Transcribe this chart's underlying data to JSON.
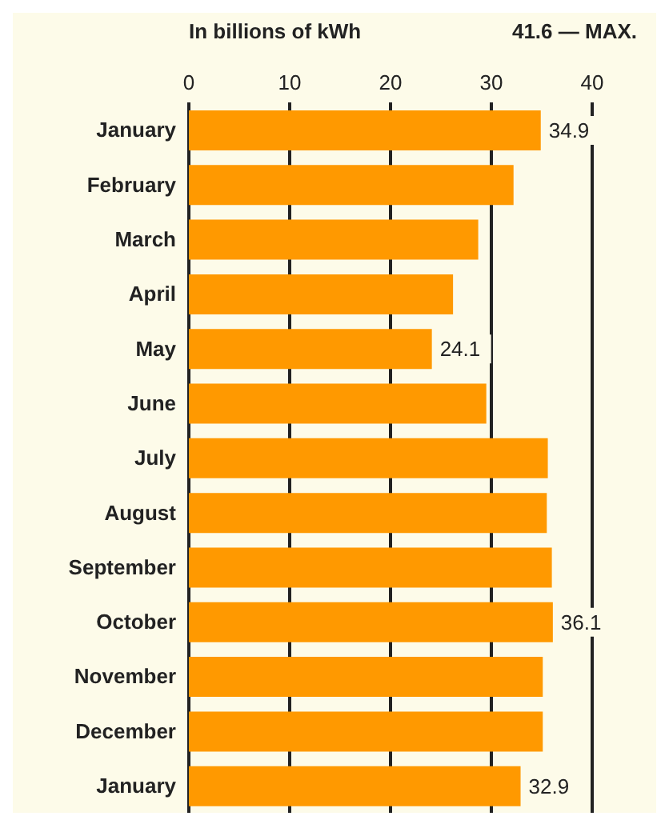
{
  "chart_data": {
    "type": "bar",
    "orientation": "horizontal",
    "xlabel": "In billions of kWh",
    "annotations": [
      "41.6 — MAX."
    ],
    "categories": [
      "January",
      "February",
      "March",
      "April",
      "May",
      "June",
      "July",
      "August",
      "September",
      "October",
      "November",
      "December",
      "January"
    ],
    "values": [
      34.9,
      32.2,
      28.7,
      26.2,
      24.1,
      29.5,
      35.6,
      35.5,
      36.0,
      36.1,
      35.1,
      35.1,
      32.9
    ],
    "value_labels": [
      "34.9",
      null,
      null,
      null,
      "24.1",
      null,
      null,
      null,
      null,
      "36.1",
      null,
      null,
      "32.9"
    ],
    "color": "#ff9900",
    "xlim": [
      0,
      40
    ],
    "xticks": [
      0,
      10,
      20,
      30,
      40
    ],
    "grid": "x"
  }
}
